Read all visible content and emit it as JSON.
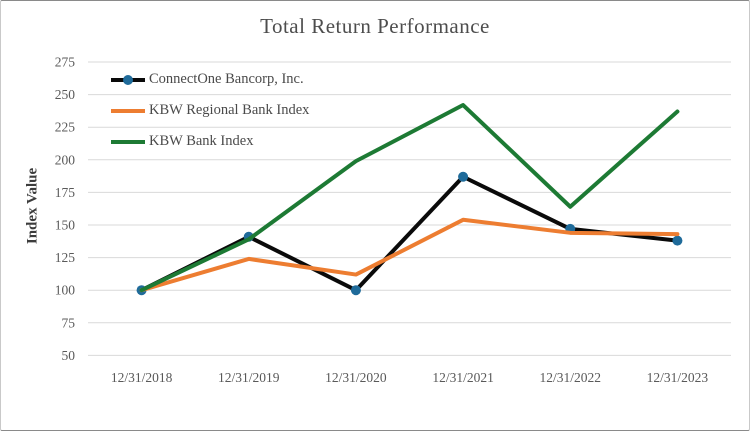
{
  "chart_data": {
    "type": "line",
    "title": "Total Return Performance",
    "ylabel": "Index Value",
    "xlabel": "",
    "categories": [
      "12/31/2018",
      "12/31/2019",
      "12/31/2020",
      "12/31/2021",
      "12/31/2022",
      "12/31/2023"
    ],
    "yticks": [
      275,
      250,
      225,
      200,
      175,
      150,
      125,
      100,
      75,
      50
    ],
    "ylim": [
      50,
      275
    ],
    "grid": "horizontal",
    "gridline_color": "#d9d9d9",
    "legend_position": "top-left-inside",
    "series": [
      {
        "name": "ConnectOne Bancorp, Inc.",
        "color": "#0a0a0a",
        "marker": {
          "shape": "circle",
          "color": "#1f6b9a",
          "radius": 5
        },
        "values": [
          100,
          141,
          100,
          187,
          147,
          138
        ]
      },
      {
        "name": "KBW Regional Bank Index",
        "color": "#ed7d31",
        "values": [
          100,
          124,
          112,
          154,
          144,
          143
        ]
      },
      {
        "name": "KBW Bank Index",
        "color": "#1d7a34",
        "values": [
          100,
          139,
          199,
          242,
          164,
          237
        ]
      }
    ]
  }
}
